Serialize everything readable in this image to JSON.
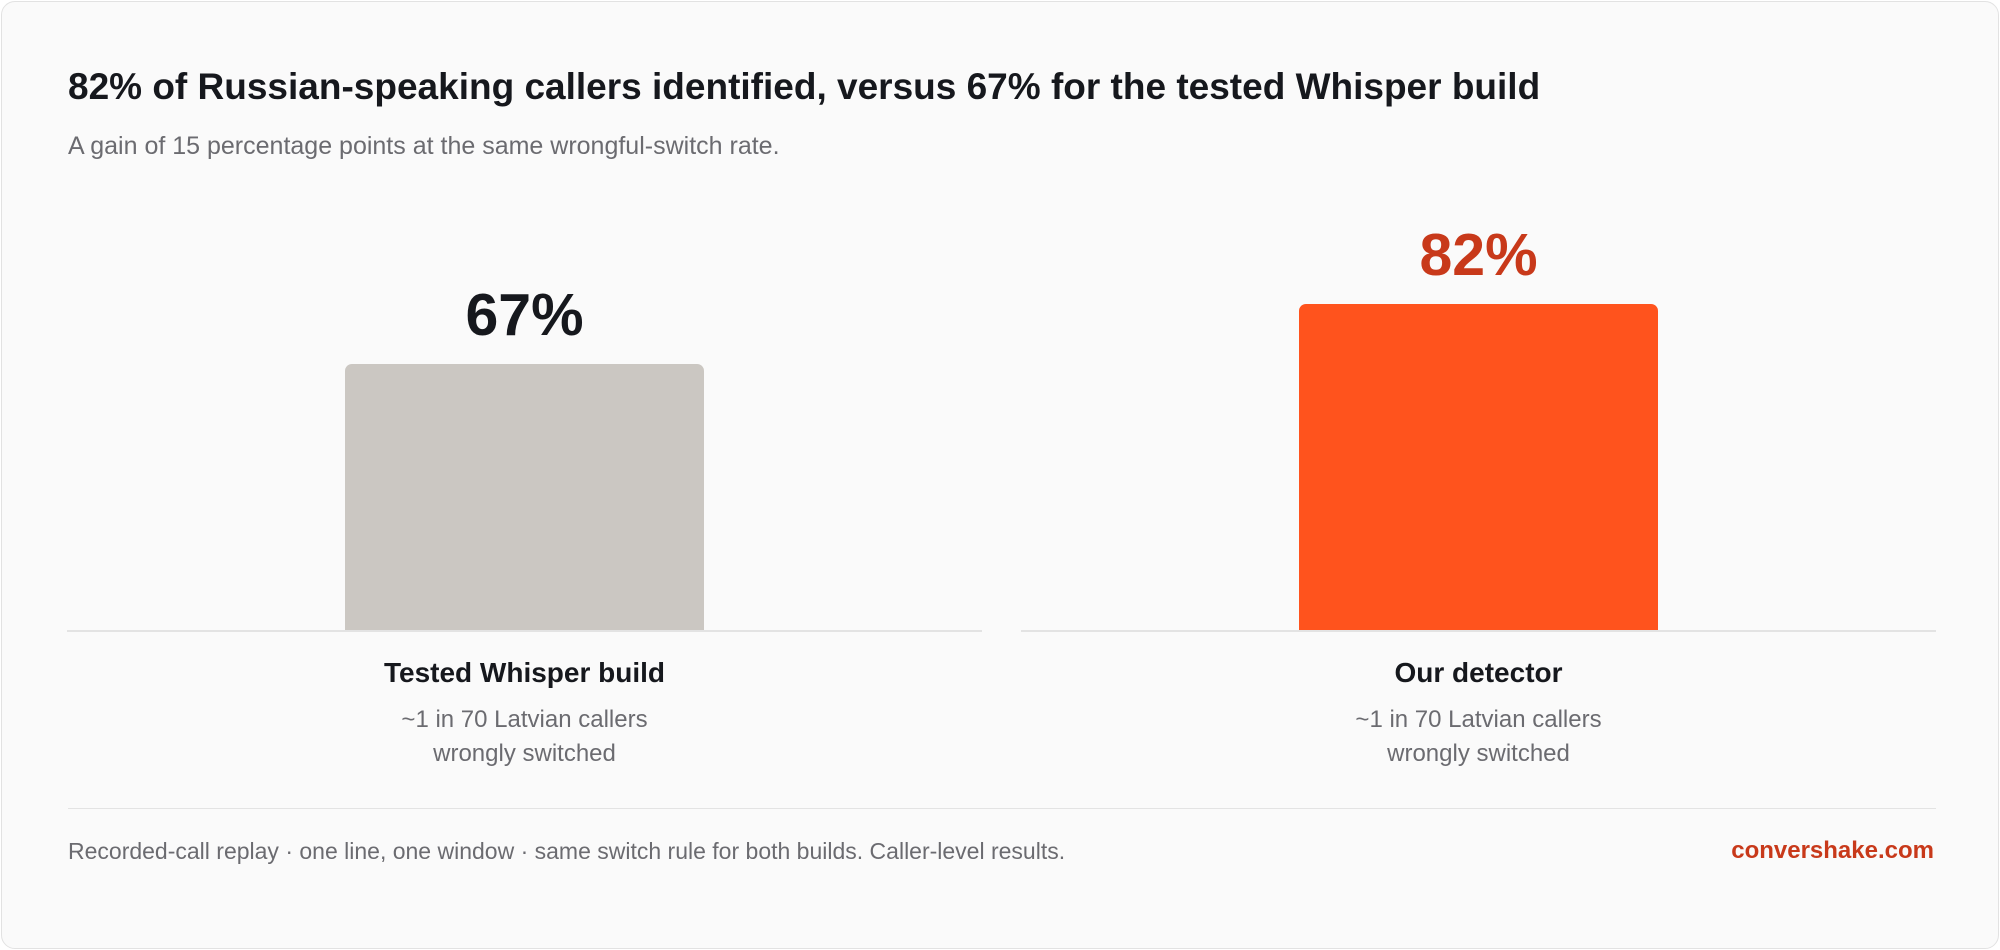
{
  "chart_data": {
    "type": "bar",
    "title": "82% of Russian-speaking callers identified, versus 67% for the tested Whisper build",
    "subtitle": "A gain of 15 percentage points at the same wrongful-switch rate.",
    "categories": [
      "Tested Whisper build",
      "Our detector"
    ],
    "notes": [
      "~1 in 70 Latvian callers wrongly switched",
      "~1 in 70 Latvian callers wrongly switched"
    ],
    "values": [
      67,
      82
    ],
    "value_labels": [
      "67%",
      "82%"
    ],
    "colors": [
      "#cbc7c2",
      "#ff531d"
    ],
    "label_colors": [
      "#16181d",
      "#c8391a"
    ],
    "ylim": [
      0,
      100
    ],
    "footer": "Recorded-call replay · one line, one window · same switch rule for both builds. Caller-level results.",
    "brand": "convershake.com"
  }
}
